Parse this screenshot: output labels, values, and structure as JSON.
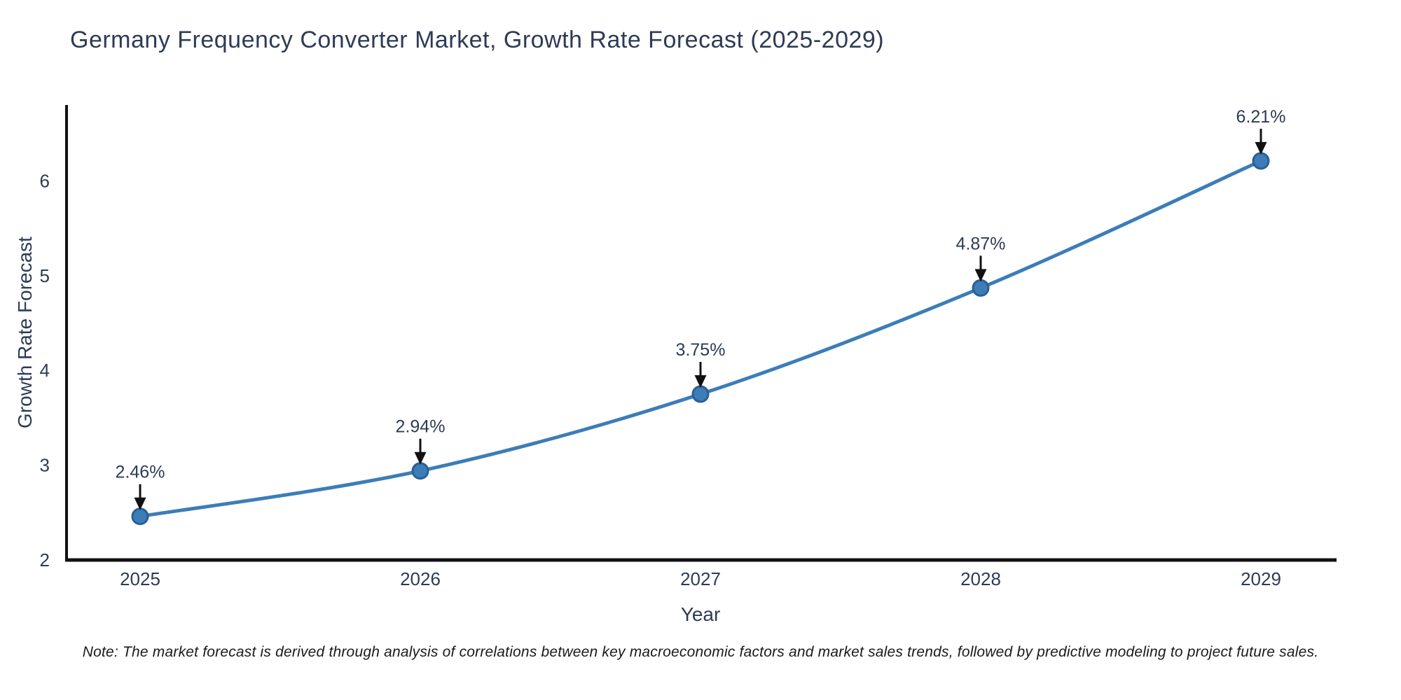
{
  "chart": {
    "note": "Note: The market forecast is derived through analysis of correlations between key macroeconomic factors and market sales trends, followed by predictive modeling to project future sales."
  },
  "chart_data": {
    "type": "line",
    "title": "Germany Frequency Converter Market, Growth Rate Forecast (2025-2029)",
    "xlabel": "Year",
    "ylabel": "Growth Rate Forecast",
    "categories": [
      "2025",
      "2026",
      "2027",
      "2028",
      "2029"
    ],
    "values": [
      2.46,
      2.94,
      3.75,
      4.87,
      6.21
    ],
    "point_labels": [
      "2.46%",
      "2.94%",
      "3.75%",
      "4.87%",
      "6.21%"
    ],
    "yticks": [
      2,
      3,
      4,
      5,
      6
    ],
    "ylim": [
      2,
      6.8
    ],
    "grid": false,
    "legend": "none",
    "line_color": "#3c7db8",
    "marker_color": "#3c7db8",
    "marker_edge_color": "#2b5f93",
    "axis_color": "#111111",
    "arrow_color": "#111111",
    "text_color": "#2e3b55"
  }
}
